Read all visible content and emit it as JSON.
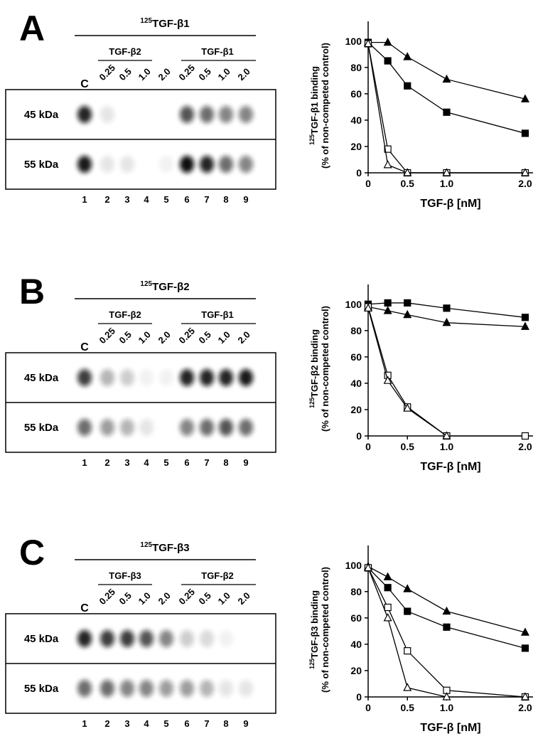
{
  "panels": [
    {
      "letter": "A",
      "probe_sup": "125",
      "probe": "TGF-β1",
      "control": "C",
      "groups": [
        {
          "name": "TGF-β2",
          "doses": [
            "0.25",
            "0.5",
            "1.0",
            "2.0"
          ]
        },
        {
          "name": "TGF-β1",
          "doses": [
            "0.25",
            "0.5",
            "1.0",
            "2.0"
          ]
        }
      ],
      "bands": [
        "45 kDa",
        "55 kDa"
      ],
      "lanes": [
        "1",
        "2",
        "3",
        "4",
        "5",
        "6",
        "7",
        "8",
        "9"
      ],
      "intensity": [
        [
          0.9,
          0.1,
          0,
          0,
          0,
          0.7,
          0.6,
          0.5,
          0.5
        ],
        [
          0.95,
          0.1,
          0.1,
          0,
          0.05,
          1,
          0.9,
          0.6,
          0.5
        ]
      ]
    },
    {
      "letter": "B",
      "probe_sup": "125",
      "probe": "TGF-β2",
      "control": "C",
      "groups": [
        {
          "name": "TGF-β2",
          "doses": [
            "0.25",
            "0.5",
            "1.0",
            "2.0"
          ]
        },
        {
          "name": "TGF-β1",
          "doses": [
            "0.25",
            "0.5",
            "1.0",
            "2.0"
          ]
        }
      ],
      "bands": [
        "45 kDa",
        "55 kDa"
      ],
      "lanes": [
        "1",
        "2",
        "3",
        "4",
        "5",
        "6",
        "7",
        "8",
        "9"
      ],
      "intensity": [
        [
          0.8,
          0.3,
          0.2,
          0.05,
          0.05,
          0.9,
          0.9,
          0.9,
          0.95
        ],
        [
          0.6,
          0.4,
          0.3,
          0.1,
          0,
          0.5,
          0.6,
          0.7,
          0.6
        ]
      ]
    },
    {
      "letter": "C",
      "probe_sup": "125",
      "probe": "TGF-β3",
      "control": "C",
      "groups": [
        {
          "name": "TGF-β3",
          "doses": [
            "0.25",
            "0.5",
            "1.0",
            "2.0"
          ]
        },
        {
          "name": "TGF-β2",
          "doses": [
            "0.25",
            "0.5",
            "1.0",
            "2.0"
          ]
        }
      ],
      "bands": [
        "45 kDa",
        "55 kDa"
      ],
      "lanes": [
        "1",
        "2",
        "3",
        "4",
        "5",
        "6",
        "7",
        "8",
        "9"
      ],
      "intensity": [
        [
          0.9,
          0.8,
          0.8,
          0.7,
          0.5,
          0.2,
          0.15,
          0.05,
          0
        ],
        [
          0.6,
          0.6,
          0.5,
          0.5,
          0.4,
          0.4,
          0.3,
          0.1,
          0.1
        ]
      ]
    }
  ],
  "chart_data": [
    {
      "type": "line",
      "ylabel_sup": "125",
      "ylabel": "TGF-β1 binding",
      "ylabel2": "(% of non-competed control)",
      "xlabel": "TGF-β  [nM]",
      "x": [
        0,
        0.25,
        0.5,
        1,
        2
      ],
      "xlim": [
        0,
        2.1
      ],
      "ylim": [
        0,
        115
      ],
      "xticks": [
        0,
        0.5,
        {
          "value": 1,
          "label": "1.0"
        },
        {
          "value": 2,
          "label": "2.0"
        }
      ],
      "yticks": [
        0,
        20,
        40,
        60,
        80,
        100
      ],
      "series": [
        {
          "color": "#000000",
          "marker": "triangle",
          "filled": true,
          "values": [
            99,
            99,
            88,
            71,
            56
          ]
        },
        {
          "color": "#000000",
          "marker": "square",
          "filled": true,
          "values": [
            99,
            85,
            66,
            46,
            30
          ]
        },
        {
          "color": "#000000",
          "marker": "square",
          "filled": false,
          "values": [
            98,
            18,
            0,
            0,
            0
          ]
        },
        {
          "color": "#000000",
          "marker": "triangle",
          "filled": false,
          "values": [
            98,
            6,
            0,
            0,
            0
          ]
        }
      ]
    },
    {
      "type": "line",
      "ylabel_sup": "125",
      "ylabel": "TGF-β2 binding",
      "ylabel2": "(% of non-competed control)",
      "xlabel": "TGF-β  [nM]",
      "x": [
        0,
        0.25,
        0.5,
        1,
        2
      ],
      "xlim": [
        0,
        2.1
      ],
      "ylim": [
        0,
        115
      ],
      "xticks": [
        0,
        0.5,
        {
          "value": 1,
          "label": "1.0"
        },
        {
          "value": 2,
          "label": "2.0"
        }
      ],
      "yticks": [
        0,
        20,
        40,
        60,
        80,
        100
      ],
      "series": [
        {
          "color": "#000000",
          "marker": "square",
          "filled": true,
          "values": [
            100,
            101,
            101,
            97,
            90
          ]
        },
        {
          "color": "#000000",
          "marker": "triangle",
          "filled": true,
          "values": [
            98,
            95,
            92,
            86,
            83
          ]
        },
        {
          "color": "#000000",
          "marker": "square",
          "filled": false,
          "values": [
            98,
            46,
            22,
            0,
            0
          ]
        },
        {
          "color": "#000000",
          "marker": "triangle",
          "filled": false,
          "values": [
            97,
            42,
            21,
            0,
            null
          ]
        }
      ]
    },
    {
      "type": "line",
      "ylabel_sup": "125",
      "ylabel": "TGF-β3 binding",
      "ylabel2": "(% of non-competed control)",
      "xlabel": "TGF-β  [nM]",
      "x": [
        0,
        0.25,
        0.5,
        1,
        2
      ],
      "xlim": [
        0,
        2.1
      ],
      "ylim": [
        0,
        115
      ],
      "xticks": [
        0,
        0.5,
        {
          "value": 1,
          "label": "1.0"
        },
        {
          "value": 2,
          "label": "2.0"
        }
      ],
      "yticks": [
        0,
        20,
        40,
        60,
        80,
        100
      ],
      "series": [
        {
          "color": "#000000",
          "marker": "triangle",
          "filled": true,
          "values": [
            99,
            91,
            82,
            65,
            49
          ]
        },
        {
          "color": "#000000",
          "marker": "square",
          "filled": true,
          "values": [
            98,
            83,
            65,
            53,
            37
          ]
        },
        {
          "color": "#000000",
          "marker": "square",
          "filled": false,
          "values": [
            98,
            68,
            35,
            5,
            0
          ]
        },
        {
          "color": "#000000",
          "marker": "triangle",
          "filled": false,
          "values": [
            98,
            60,
            7,
            0,
            0
          ]
        }
      ]
    }
  ]
}
